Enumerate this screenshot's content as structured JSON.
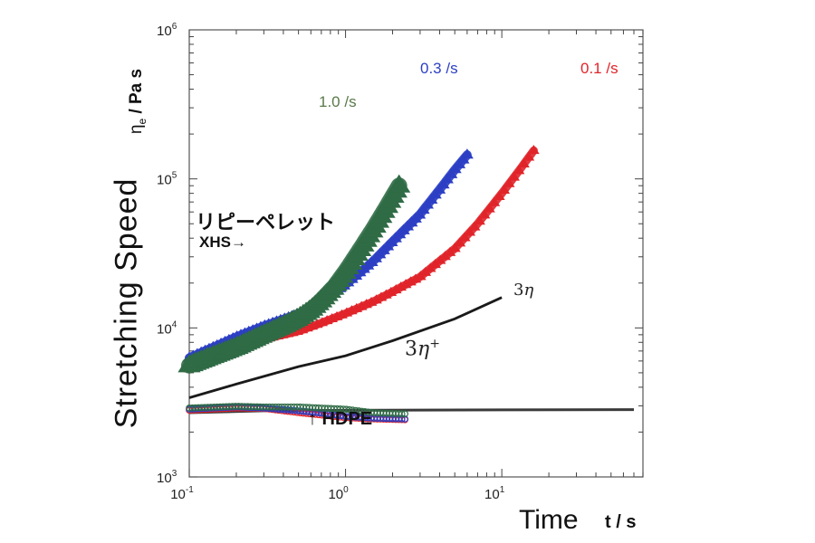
{
  "chart_data": {
    "type": "scatter",
    "xscale": "log",
    "yscale": "log",
    "xlim": [
      0.1,
      80
    ],
    "ylim": [
      1000,
      1000000
    ],
    "ylabel": "Stretching Speed",
    "ylabel_unit": "ηe / Pa s",
    "xlabel": "Time",
    "xlabel_unit": "t / s",
    "x_ticks": [
      {
        "value": 0.1,
        "base": "10",
        "exp": "-1"
      },
      {
        "value": 1,
        "base": "10",
        "exp": "0"
      },
      {
        "value": 10,
        "base": "10",
        "exp": "1"
      }
    ],
    "y_ticks": [
      {
        "value": 1000,
        "base": "10",
        "exp": "3"
      },
      {
        "value": 10000,
        "base": "10",
        "exp": "4"
      },
      {
        "value": 100000,
        "base": "10",
        "exp": "5"
      },
      {
        "value": 1000000,
        "base": "10",
        "exp": "6"
      }
    ],
    "series": [
      {
        "name": "0.1 /s",
        "color": "#e0242a",
        "marker": "triangle",
        "x": [
          0.1,
          0.15,
          0.2,
          0.3,
          0.5,
          0.7,
          1.0,
          1.5,
          2.0,
          3.0,
          5.0,
          7.0,
          10.0,
          13.0,
          16.0
        ],
        "y": [
          5300,
          6500,
          7300,
          8400,
          9500,
          10800,
          12500,
          15000,
          17500,
          22000,
          34000,
          50000,
          80000,
          115000,
          155000
        ]
      },
      {
        "name": "0.3 /s",
        "color": "#2c3fc4",
        "marker": "triangle",
        "x": [
          0.1,
          0.15,
          0.2,
          0.3,
          0.5,
          0.7,
          1.0,
          1.5,
          2.0,
          3.0,
          4.0,
          5.0,
          6.0
        ],
        "y": [
          6300,
          7600,
          8700,
          10300,
          12400,
          15200,
          19500,
          28000,
          38000,
          58000,
          85000,
          115000,
          145000
        ]
      },
      {
        "name": "1.0 /s",
        "color": "#2f6b45",
        "marker": "triangle",
        "x": [
          0.1,
          0.15,
          0.2,
          0.3,
          0.4,
          0.5,
          0.6,
          0.7,
          0.85,
          1.0,
          1.2,
          1.5,
          1.8,
          2.2
        ],
        "y": [
          5600,
          6600,
          7400,
          9000,
          10300,
          11600,
          13200,
          15300,
          19000,
          24000,
          32000,
          46000,
          63000,
          90000
        ]
      }
    ],
    "hdpe_series": [
      {
        "name": "HDPE 0.1 /s",
        "color": "#e0242a",
        "x": [
          0.1,
          0.2,
          0.3,
          0.5,
          0.7,
          1.0,
          1.5,
          2.4
        ],
        "y": [
          2800,
          2900,
          2880,
          2700,
          2600,
          2500,
          2450,
          2420
        ]
      },
      {
        "name": "HDPE 0.3 /s",
        "color": "#2c3fc4",
        "x": [
          0.1,
          0.2,
          0.3,
          0.5,
          0.7,
          1.0,
          1.5,
          2.4
        ],
        "y": [
          2850,
          2950,
          2900,
          2780,
          2680,
          2550,
          2480,
          2450
        ]
      },
      {
        "name": "HDPE 1.0 /s",
        "color": "#2f6b45",
        "x": [
          0.1,
          0.2,
          0.3,
          0.5,
          0.7,
          1.0,
          1.5,
          2.4
        ],
        "y": [
          2900,
          2980,
          2950,
          2950,
          2900,
          2850,
          2700,
          2650
        ]
      }
    ],
    "reference_lines": [
      {
        "name": "3η",
        "x": [
          0.1,
          0.2,
          0.5,
          1.0,
          2.0,
          5.0,
          10.0
        ],
        "y": [
          3400,
          4200,
          5500,
          6500,
          8200,
          11500,
          16000
        ]
      },
      {
        "name": "3η+",
        "x": [
          0.1,
          0.3,
          1.0,
          3.0,
          10.0,
          70.0
        ],
        "y": [
          2700,
          2780,
          2800,
          2810,
          2820,
          2830
        ]
      }
    ]
  },
  "labels": {
    "rate_01": "0.1 /s",
    "rate_03": "0.3 /s",
    "rate_10": "1.0 /s",
    "eta": "3η",
    "eta_plus": "3η+",
    "repellet": "リピーペレット",
    "xhs": "XHS→",
    "hdpe": "↑ HDPE",
    "ylabel_main": "Stretching Speed",
    "ylabel_unit": "ηe / Pa s",
    "xlabel_main": "Time",
    "xlabel_unit": "t / s"
  },
  "colors": {
    "red": "#e0242a",
    "blue": "#2c3fc4",
    "green": "#2f6b45",
    "green_label": "#5a7a4a",
    "line": "#1a1a1a"
  }
}
